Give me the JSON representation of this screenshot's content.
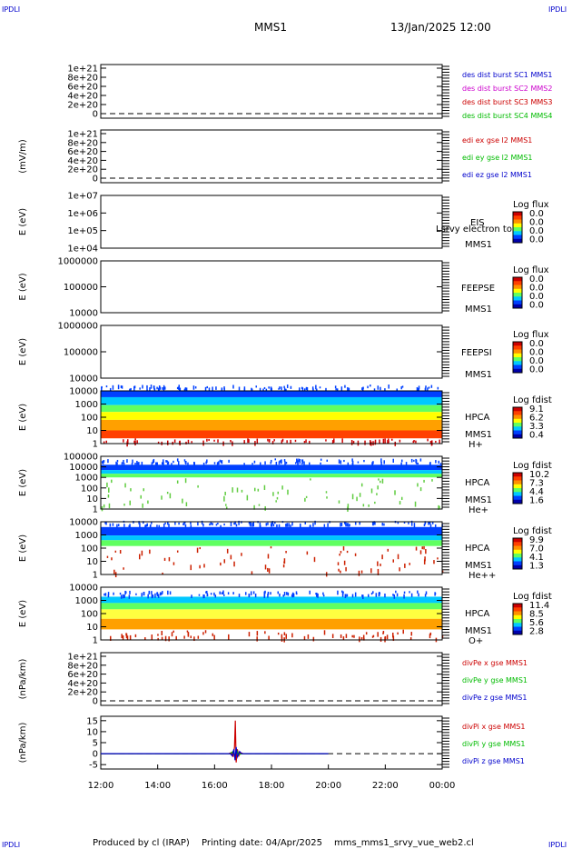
{
  "corners": {
    "top_left": "IPDLI",
    "top_right": "IPDLI",
    "bottom_left": "IPDLI",
    "bottom_right": "IPDLI"
  },
  "header": {
    "spacecraft": "MMS1",
    "datetime": "13/Jan/2025 12:00"
  },
  "footer": {
    "produced_by": "Produced by cl (IRAP)",
    "printing_date": "Printing date: 04/Apr/2025",
    "filename": "mms_mms1_srvy_vue_web2.cl"
  },
  "chart_data": [
    {
      "type": "line",
      "id": "des",
      "ylabel": "",
      "yticks": [
        "1e+21",
        "8e+20",
        "6e+20",
        "4e+20",
        "2e+20",
        "0"
      ],
      "ylim": [
        0,
        1e+21
      ],
      "legend": [
        {
          "text": "des dist burst SC1 MMS1",
          "color": "#0000cc"
        },
        {
          "text": "des dist burst SC2 MMS2",
          "color": "#cc00cc"
        },
        {
          "text": "des dist burst SC3 MMS3",
          "color": "#cc0000"
        },
        {
          "text": "des dist burst SC4 MMS4",
          "color": "#00bb00"
        }
      ],
      "series": []
    },
    {
      "type": "line",
      "id": "edi",
      "ylabel": "(mV/m)",
      "yticks": [
        "1e+21",
        "8e+20",
        "6e+20",
        "4e+20",
        "2e+20",
        "0"
      ],
      "ylim": [
        0,
        1e+21
      ],
      "legend": [
        {
          "text": "edi ex gse l2 MMS1",
          "color": "#cc0000"
        },
        {
          "text": "edi ey gse l2 MMS1",
          "color": "#00bb00"
        },
        {
          "text": "edi ez gse l2 MMS1",
          "color": "#0000cc"
        }
      ],
      "series": []
    },
    {
      "type": "heatmap",
      "id": "eis",
      "ylabel": "E (eV)",
      "yticks": [
        "1e+07",
        "1e+06",
        "1e+05",
        "1e+04"
      ],
      "instrument": [
        "EIS",
        "MMS1"
      ],
      "overlay": "Lsrvy electron to",
      "colorbar": {
        "title": "Log flux",
        "values": [
          "0.0",
          "0.0",
          "0.0",
          "0.0"
        ]
      }
    },
    {
      "type": "heatmap",
      "id": "feepse",
      "ylabel": "E (eV)",
      "yticks": [
        "1000000",
        "100000",
        "10000"
      ],
      "instrument": [
        "FEEPSE",
        "MMS1"
      ],
      "colorbar": {
        "title": "Log flux",
        "values": [
          "0.0",
          "0.0",
          "0.0",
          "0.0"
        ]
      }
    },
    {
      "type": "heatmap",
      "id": "feepsi",
      "ylabel": "E (eV)",
      "yticks": [
        "1000000",
        "100000",
        "10000"
      ],
      "instrument": [
        "FEEPSI",
        "MMS1"
      ],
      "colorbar": {
        "title": "Log flux",
        "values": [
          "0.0",
          "0.0",
          "0.0",
          "0.0"
        ]
      }
    },
    {
      "type": "heatmap",
      "id": "hpca_h",
      "ylabel": "E (eV)",
      "yticks": [
        "10000",
        "1000",
        "100",
        "10",
        "1"
      ],
      "instrument": [
        "HPCA",
        "MMS1",
        "H+"
      ],
      "colorbar": {
        "title": "Log fdist",
        "values": [
          "9.1",
          "6.2",
          "3.3",
          "0.4"
        ]
      },
      "bands": [
        {
          "from": 0.0,
          "to": 0.12,
          "color": "#0040ff"
        },
        {
          "from": 0.12,
          "to": 0.27,
          "color": "#00c8ff"
        },
        {
          "from": 0.27,
          "to": 0.4,
          "color": "#60ff60"
        },
        {
          "from": 0.4,
          "to": 0.55,
          "color": "#ffff00"
        },
        {
          "from": 0.55,
          "to": 0.75,
          "color": "#ffa000"
        },
        {
          "from": 0.75,
          "to": 0.9,
          "color": "#ff4000"
        }
      ],
      "sparse_top": "#0040ff",
      "sparse_bottom": "#cc0000"
    },
    {
      "type": "heatmap",
      "id": "hpca_he",
      "ylabel": "E (eV)",
      "yticks": [
        "100000",
        "10000",
        "1000",
        "100",
        "10",
        "1"
      ],
      "instrument": [
        "HPCA",
        "MMS1",
        "He+"
      ],
      "colorbar": {
        "title": "Log fdist",
        "values": [
          "10.2",
          "7.3",
          "4.4",
          "1.6"
        ]
      },
      "bands": [
        {
          "from": 0.16,
          "to": 0.26,
          "color": "#0040ff"
        },
        {
          "from": 0.26,
          "to": 0.33,
          "color": "#00c8ff"
        },
        {
          "from": 0.33,
          "to": 0.4,
          "color": "#60ff60"
        }
      ],
      "sparse_top": "#0040ff",
      "sparse_bottom": "#60cc40"
    },
    {
      "type": "heatmap",
      "id": "hpca_hepp",
      "ylabel": "E (eV)",
      "yticks": [
        "10000",
        "1000",
        "100",
        "10",
        "1"
      ],
      "instrument": [
        "HPCA",
        "MMS1",
        "He++"
      ],
      "colorbar": {
        "title": "Log fdist",
        "values": [
          "9.9",
          "7.0",
          "4.1",
          "1.3"
        ]
      },
      "bands": [
        {
          "from": 0.1,
          "to": 0.26,
          "color": "#0040ff"
        },
        {
          "from": 0.26,
          "to": 0.35,
          "color": "#00c8ff"
        },
        {
          "from": 0.35,
          "to": 0.46,
          "color": "#60ff60"
        }
      ],
      "sparse_top": "#0040ff",
      "sparse_bottom": "#cc2000"
    },
    {
      "type": "heatmap",
      "id": "hpca_o",
      "ylabel": "E (eV)",
      "yticks": [
        "10000",
        "1000",
        "100",
        "10",
        "1"
      ],
      "instrument": [
        "HPCA",
        "MMS1",
        "O+"
      ],
      "colorbar": {
        "title": "Log fdist",
        "values": [
          "11.4",
          "8.5",
          "5.6",
          "2.8"
        ]
      },
      "bands": [
        {
          "from": 0.18,
          "to": 0.3,
          "color": "#00c8ff"
        },
        {
          "from": 0.3,
          "to": 0.42,
          "color": "#60ff60"
        },
        {
          "from": 0.42,
          "to": 0.6,
          "color": "#ffff40"
        },
        {
          "from": 0.6,
          "to": 0.8,
          "color": "#ffa000"
        }
      ],
      "sparse_top": "#0040ff",
      "sparse_bottom": "#cc2000"
    },
    {
      "type": "line",
      "id": "divpe",
      "ylabel": "(nPa/km)",
      "yticks": [
        "1e+21",
        "8e+20",
        "6e+20",
        "4e+20",
        "2e+20",
        "0"
      ],
      "ylim": [
        0,
        1e+21
      ],
      "legend": [
        {
          "text": "divPe x gse MMS1",
          "color": "#cc0000"
        },
        {
          "text": "divPe y gse MMS1",
          "color": "#00bb00"
        },
        {
          "text": "divPe z gse MMS1",
          "color": "#0000cc"
        }
      ],
      "series": []
    },
    {
      "type": "line",
      "id": "divpi",
      "ylabel": "(nPa/km)",
      "yticks": [
        "15",
        "10",
        "5",
        "0",
        "-5"
      ],
      "ylim": [
        -7,
        17
      ],
      "legend": [
        {
          "text": "divPi x gse MMS1",
          "color": "#cc0000"
        },
        {
          "text": "divPi y gse MMS1",
          "color": "#00bb00"
        },
        {
          "text": "divPi z gse MMS1",
          "color": "#0000cc"
        }
      ],
      "series": [
        {
          "name": "divPi x gse MMS1",
          "color": "#cc0000",
          "x_hours": [
            12.0,
            16.5,
            16.6,
            16.65,
            16.7,
            16.73,
            16.76,
            16.8,
            16.85,
            16.9,
            17.0,
            20.0
          ],
          "values": [
            0,
            0,
            0.5,
            -1.5,
            3,
            15,
            -4,
            2,
            -1,
            0.5,
            0,
            0
          ]
        },
        {
          "name": "divPi y gse MMS1",
          "color": "#00bb00",
          "x_hours": [
            12.0,
            16.55,
            16.65,
            16.72,
            16.78,
            16.85,
            16.95,
            20.0
          ],
          "values": [
            0,
            0,
            1,
            -1,
            1.5,
            -0.5,
            0,
            0
          ]
        },
        {
          "name": "divPi z gse MMS1",
          "color": "#0000cc",
          "x_hours": [
            12.0,
            16.55,
            16.62,
            16.68,
            16.72,
            16.76,
            16.8,
            16.88,
            16.95,
            20.0
          ],
          "values": [
            0,
            0,
            -1,
            2,
            -3,
            3,
            -1.5,
            1,
            0,
            0
          ]
        }
      ]
    }
  ],
  "xaxis": {
    "ticks": [
      "12:00",
      "14:00",
      "16:00",
      "18:00",
      "20:00",
      "22:00",
      "00:00"
    ],
    "range_hours": [
      12,
      24
    ]
  }
}
